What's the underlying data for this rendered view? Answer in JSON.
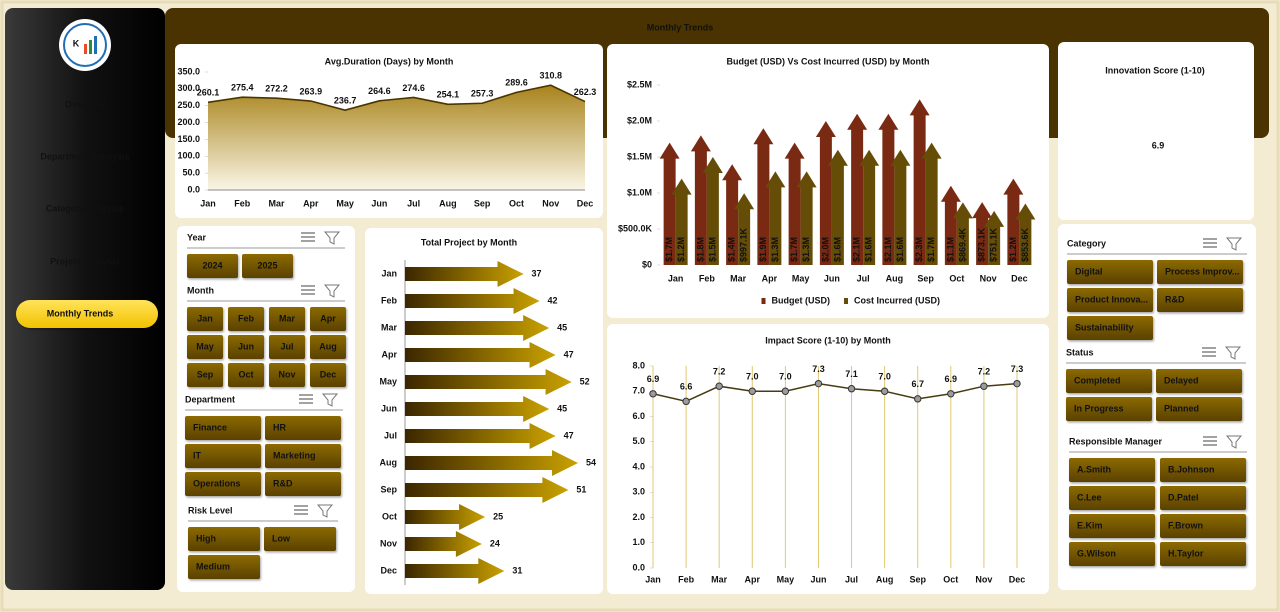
{
  "title": "Monthly Trends",
  "nav": [
    "Overview",
    "Department Analysis",
    "Category Analysis",
    "Project Analysis",
    "Monthly Trends"
  ],
  "kpi": {
    "label": "Innovation Score (1-10)",
    "value": 6.9
  },
  "slicers": [
    {
      "title": "Year",
      "items": [
        "2024",
        "2025"
      ]
    },
    {
      "title": "Month",
      "items": [
        "Jan",
        "Feb",
        "Mar",
        "Apr",
        "May",
        "Jun",
        "Jul",
        "Aug",
        "Sep",
        "Oct",
        "Nov",
        "Dec"
      ]
    },
    {
      "title": "Department",
      "items": [
        "Finance",
        "HR",
        "IT",
        "Marketing",
        "Operations",
        "R&D"
      ]
    },
    {
      "title": "Risk Level",
      "items": [
        "High",
        "Low",
        "Medium"
      ]
    },
    {
      "title": "Category",
      "items": [
        "Digital",
        "Process Improv...",
        "Product Innova...",
        "R&D",
        "Sustainability"
      ]
    },
    {
      "title": "Status",
      "items": [
        "Completed",
        "Delayed",
        "In Progress",
        "Planned"
      ]
    },
    {
      "title": "Responsible Manager",
      "items": [
        "A.Smith",
        "B.Johnson",
        "C.Lee",
        "D.Patel",
        "E.Kim",
        "F.Brown",
        "G.Wilson",
        "H.Taylor"
      ]
    }
  ],
  "chart_data": [
    {
      "type": "area",
      "title": "Avg.Duration (Days) by Month",
      "color": "#a8831a",
      "categories": [
        "Jan",
        "Feb",
        "Mar",
        "Apr",
        "May",
        "Jun",
        "Jul",
        "Aug",
        "Sep",
        "Oct",
        "Nov",
        "Dec"
      ],
      "values": [
        260.1,
        275.4,
        272.2,
        263.9,
        236.7,
        264.6,
        274.6,
        254.1,
        257.3,
        289.6,
        310.8,
        262.3
      ],
      "ylim": [
        0,
        350
      ],
      "yticks": [
        {
          "value": 0,
          "label": "0.0"
        },
        {
          "value": 50,
          "label": "50.0"
        },
        {
          "value": 100,
          "label": "100.0"
        },
        {
          "value": 150,
          "label": "150.0"
        },
        {
          "value": 200,
          "label": "200.0"
        },
        {
          "value": 250,
          "label": "250.0"
        },
        {
          "value": 300,
          "label": "300.0"
        },
        {
          "value": 350,
          "label": "350.0"
        }
      ]
    },
    {
      "type": "bar",
      "title": "Budget (USD) Vs Cost Incurred (USD) by Month",
      "categories": [
        "Jan",
        "Feb",
        "Mar",
        "Apr",
        "May",
        "Jun",
        "Jul",
        "Aug",
        "Sep",
        "Oct",
        "Nov",
        "Dec"
      ],
      "series": [
        {
          "name": "Budget (USD)",
          "color": "#7a2a12",
          "values": [
            1700000,
            1800000,
            1400000,
            1900000,
            1700000,
            2000000,
            2100000,
            2100000,
            2300000,
            1100000,
            873100,
            1200000
          ],
          "value_labels": [
            "$1.7M",
            "$1.8M",
            "$1.4M",
            "$1.9M",
            "$1.7M",
            "$2.0M",
            "$2.1M",
            "$2.1M",
            "$2.3M",
            "$1.1M",
            "$873.1K",
            "$1.2M"
          ]
        },
        {
          "name": "Cost Incurred (USD)",
          "color": "#654d08",
          "values": [
            1200000,
            1500000,
            997100,
            1300000,
            1300000,
            1600000,
            1600000,
            1600000,
            1700000,
            869400,
            751100,
            853600
          ],
          "value_labels": [
            "$1.2M",
            "$1.5M",
            "$997.1K",
            "$1.3M",
            "$1.3M",
            "$1.6M",
            "$1.6M",
            "$1.6M",
            "$1.7M",
            "$869.4K",
            "$751.1K",
            "$853.6K"
          ]
        }
      ],
      "ylim": [
        0,
        2500000
      ],
      "yticks": [
        {
          "value": 0,
          "label": "$0"
        },
        {
          "value": 500000,
          "label": "$500.0K"
        },
        {
          "value": 1000000,
          "label": "$1.0M"
        },
        {
          "value": 1500000,
          "label": "$1.5M"
        },
        {
          "value": 2000000,
          "label": "$2.0M"
        },
        {
          "value": 2500000,
          "label": "$2.5M"
        }
      ],
      "legend": "bottom"
    },
    {
      "type": "bar",
      "orientation": "horizontal",
      "title": "Total Project by Month",
      "color": "#c9a100",
      "categories": [
        "Jan",
        "Feb",
        "Mar",
        "Apr",
        "May",
        "Jun",
        "Jul",
        "Aug",
        "Sep",
        "Oct",
        "Nov",
        "Dec"
      ],
      "values": [
        37,
        42,
        45,
        47,
        52,
        45,
        47,
        54,
        51,
        25,
        24,
        31
      ]
    },
    {
      "type": "line",
      "title": "Impact Score (1-10) by Month",
      "color": "#4a3a10",
      "categories": [
        "Jan",
        "Feb",
        "Mar",
        "Apr",
        "May",
        "Jun",
        "Jul",
        "Aug",
        "Sep",
        "Oct",
        "Nov",
        "Dec"
      ],
      "values": [
        6.9,
        6.6,
        7.2,
        7.0,
        7.0,
        7.3,
        7.1,
        7.0,
        6.7,
        6.9,
        7.2,
        7.3
      ],
      "value_labels": [
        "6.9",
        "6.6",
        "7.2",
        "7.0",
        "7.0",
        "7.3",
        "7.1",
        "7.0",
        "6.7",
        "6.9",
        "7.2",
        "7.3"
      ],
      "ylim": [
        0,
        8
      ],
      "yticks": [
        {
          "value": 0,
          "label": "0.0"
        },
        {
          "value": 1,
          "label": "1.0"
        },
        {
          "value": 2,
          "label": "2.0"
        },
        {
          "value": 3,
          "label": "3.0"
        },
        {
          "value": 4,
          "label": "4.0"
        },
        {
          "value": 5,
          "label": "5.0"
        },
        {
          "value": 6,
          "label": "6.0"
        },
        {
          "value": 7,
          "label": "7.0"
        },
        {
          "value": 8,
          "label": "8.0"
        }
      ]
    }
  ]
}
